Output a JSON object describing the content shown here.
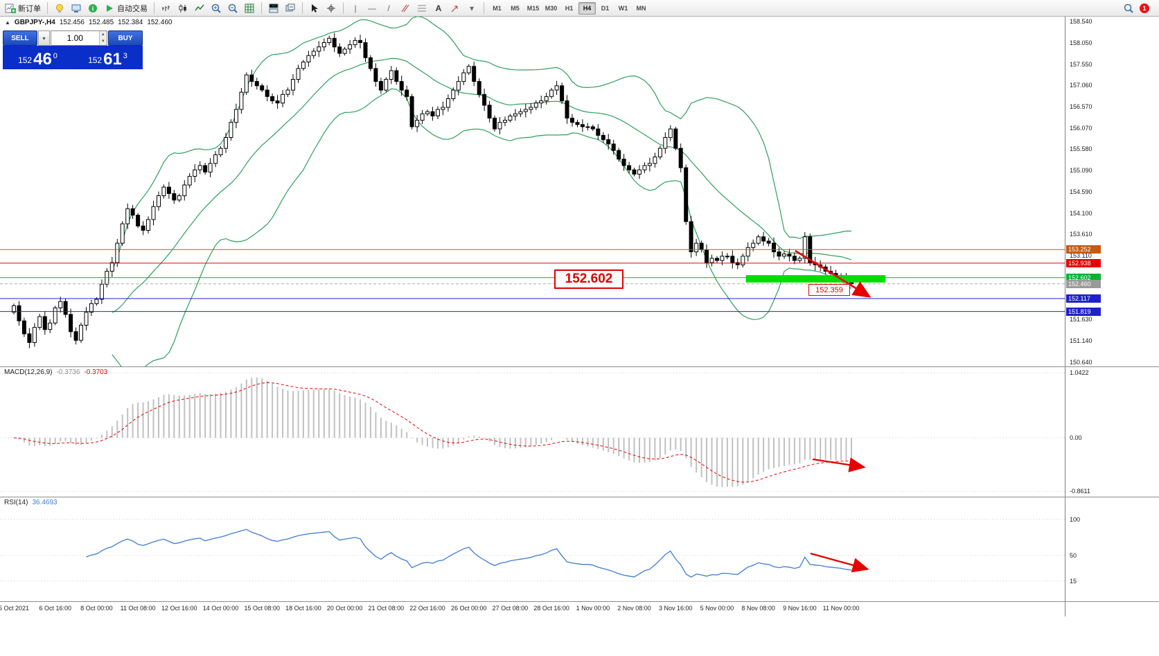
{
  "toolbar": {
    "new_order_label": "新订单",
    "auto_trading_label": "自动交易",
    "timeframes": [
      "M1",
      "M5",
      "M15",
      "M30",
      "H1",
      "H4",
      "D1",
      "W1",
      "MN"
    ],
    "active_timeframe": "H4",
    "notification_count": "1"
  },
  "quote_line": {
    "symbol": "GBPJPY-,H4",
    "open": "152.456",
    "high": "152.485",
    "low": "152.384",
    "close": "152.460"
  },
  "trade_panel": {
    "sell_label": "SELL",
    "buy_label": "BUY",
    "volume": "1.00",
    "sell_price": {
      "prefix": "152",
      "big": "46",
      "sup": "0"
    },
    "buy_price": {
      "prefix": "152",
      "big": "61",
      "sup": "3"
    }
  },
  "annotations": {
    "support_label": "152.602",
    "breakout_label": "152.359"
  },
  "indicators": {
    "macd": {
      "name": "MACD(12,26,9)",
      "main_value": "-0.3736",
      "signal_value": "-0.3703"
    },
    "rsi": {
      "name": "RSI(14)",
      "value": "36.4693"
    }
  },
  "chart_data": {
    "type": "candlestick",
    "symbol": "GBPJPY-",
    "timeframe": "H4",
    "y_axis_labels": [
      "158.540",
      "158.050",
      "157.550",
      "157.060",
      "156.570",
      "156.070",
      "155.580",
      "155.090",
      "154.590",
      "154.100",
      "153.610",
      "153.110",
      "151.630",
      "151.140",
      "150.640"
    ],
    "x_axis_labels": [
      "5 Oct 2021",
      "6 Oct 16:00",
      "8 Oct 00:00",
      "11 Oct 08:00",
      "12 Oct 16:00",
      "14 Oct 00:00",
      "15 Oct 08:00",
      "18 Oct 16:00",
      "20 Oct 00:00",
      "21 Oct 08:00",
      "22 Oct 16:00",
      "26 Oct 00:00",
      "27 Oct 08:00",
      "28 Oct 16:00",
      "1 Nov 00:00",
      "2 Nov 08:00",
      "3 Nov 16:00",
      "5 Nov 00:00",
      "8 Nov 08:00",
      "9 Nov 16:00",
      "11 Nov 00:00"
    ],
    "bars_per_label": 8,
    "first_open": 151.8,
    "closes": [
      151.95,
      151.6,
      151.3,
      151.1,
      151.45,
      151.7,
      151.4,
      151.55,
      151.9,
      152.05,
      151.75,
      151.35,
      151.15,
      151.5,
      151.8,
      152.0,
      152.1,
      152.45,
      152.75,
      152.95,
      153.4,
      153.85,
      154.2,
      154.05,
      153.8,
      153.7,
      153.95,
      154.25,
      154.5,
      154.7,
      154.55,
      154.4,
      154.5,
      154.75,
      154.95,
      155.1,
      155.2,
      155.05,
      155.25,
      155.45,
      155.6,
      155.85,
      156.2,
      156.5,
      156.9,
      157.3,
      157.15,
      157.05,
      156.95,
      156.8,
      156.7,
      156.65,
      156.85,
      156.95,
      157.2,
      157.45,
      157.6,
      157.75,
      157.85,
      157.95,
      158.05,
      158.15,
      157.95,
      157.8,
      157.9,
      158.0,
      158.1,
      158.05,
      157.7,
      157.45,
      157.15,
      156.95,
      157.2,
      157.4,
      157.15,
      156.95,
      156.8,
      156.1,
      156.25,
      156.4,
      156.45,
      156.35,
      156.5,
      156.55,
      156.75,
      156.95,
      157.15,
      157.35,
      157.5,
      157.15,
      156.85,
      156.6,
      156.3,
      156.05,
      156.2,
      156.25,
      156.35,
      156.4,
      156.45,
      156.5,
      156.55,
      156.65,
      156.7,
      156.8,
      156.95,
      157.05,
      156.7,
      156.3,
      156.2,
      156.15,
      156.1,
      156.1,
      156.05,
      155.9,
      155.8,
      155.7,
      155.55,
      155.35,
      155.2,
      155.1,
      155.0,
      155.1,
      155.2,
      155.25,
      155.4,
      155.6,
      155.85,
      156.05,
      155.6,
      155.15,
      153.9,
      153.2,
      153.4,
      153.25,
      152.95,
      153.05,
      153.0,
      153.1,
      153.1,
      152.95,
      152.9,
      153.1,
      153.3,
      153.4,
      153.55,
      153.45,
      153.4,
      153.2,
      153.1,
      153.15,
      153.1,
      153.0,
      153.05,
      153.55,
      152.95,
      152.9,
      152.85,
      152.75,
      152.7,
      152.65,
      152.6,
      152.5,
      152.46
    ],
    "bollinger": {
      "period": 20,
      "deviation": 2,
      "color": "#2e9e5e"
    },
    "hlines": [
      {
        "price": 153.252,
        "label": "153.252",
        "color": "#c55a11"
      },
      {
        "price": 152.938,
        "label": "152.938",
        "color": "#e60000"
      },
      {
        "price": 152.602,
        "label": "152.602",
        "color": "#00b432"
      },
      {
        "price": 152.117,
        "label": "152.117",
        "color": "#2020cc"
      },
      {
        "price": 151.819,
        "label": "151.819",
        "color": "#2020cc"
      }
    ],
    "bid": {
      "price": 152.46,
      "label": "152.460",
      "color": "#9a9a9a"
    },
    "support_zone": {
      "bar_start": 142,
      "bar_end": 169,
      "price_top": 152.66,
      "price_bottom": 152.49,
      "color": "#00dd00"
    },
    "macd_axis_labels": [
      "1.0422",
      "0.00",
      "-0.8611"
    ],
    "rsi_axis_labels": [
      "100",
      "50",
      "15"
    ],
    "arrows": {
      "main": [
        1148,
        362,
        1253,
        427
      ],
      "macd": [
        1173,
        663,
        1245,
        674
      ],
      "rsi": [
        1170,
        799,
        1250,
        821
      ]
    }
  }
}
